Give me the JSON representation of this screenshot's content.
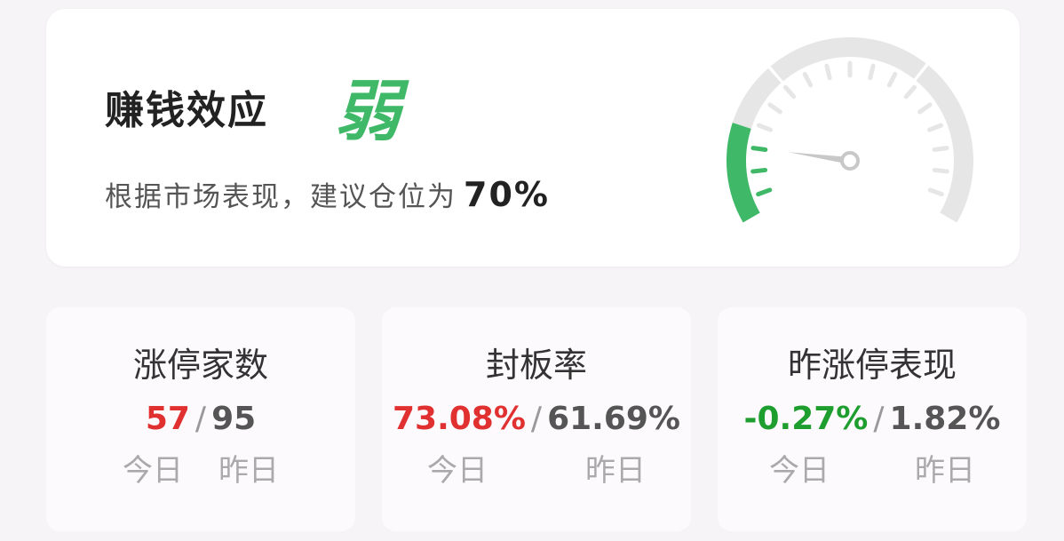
{
  "summary": {
    "title": "赚钱效应",
    "level": "弱",
    "advice_prefix": "根据市场表现，建议仓位为",
    "position": "70%",
    "gauge_level_percent": 20,
    "accent": "#3fb868"
  },
  "stats": [
    {
      "title": "涨停家数",
      "today": "57",
      "yesterday": "95",
      "today_label": "今日",
      "yesterday_label": "昨日",
      "today_color": "#e03030"
    },
    {
      "title": "封板率",
      "today": "73.08%",
      "yesterday": "61.69%",
      "today_label": "今日",
      "yesterday_label": "昨日",
      "today_color": "#e03030"
    },
    {
      "title": "昨涨停表现",
      "today": "-0.27%",
      "yesterday": "1.82%",
      "today_label": "今日",
      "yesterday_label": "昨日",
      "today_color": "#1e9e2e"
    }
  ]
}
